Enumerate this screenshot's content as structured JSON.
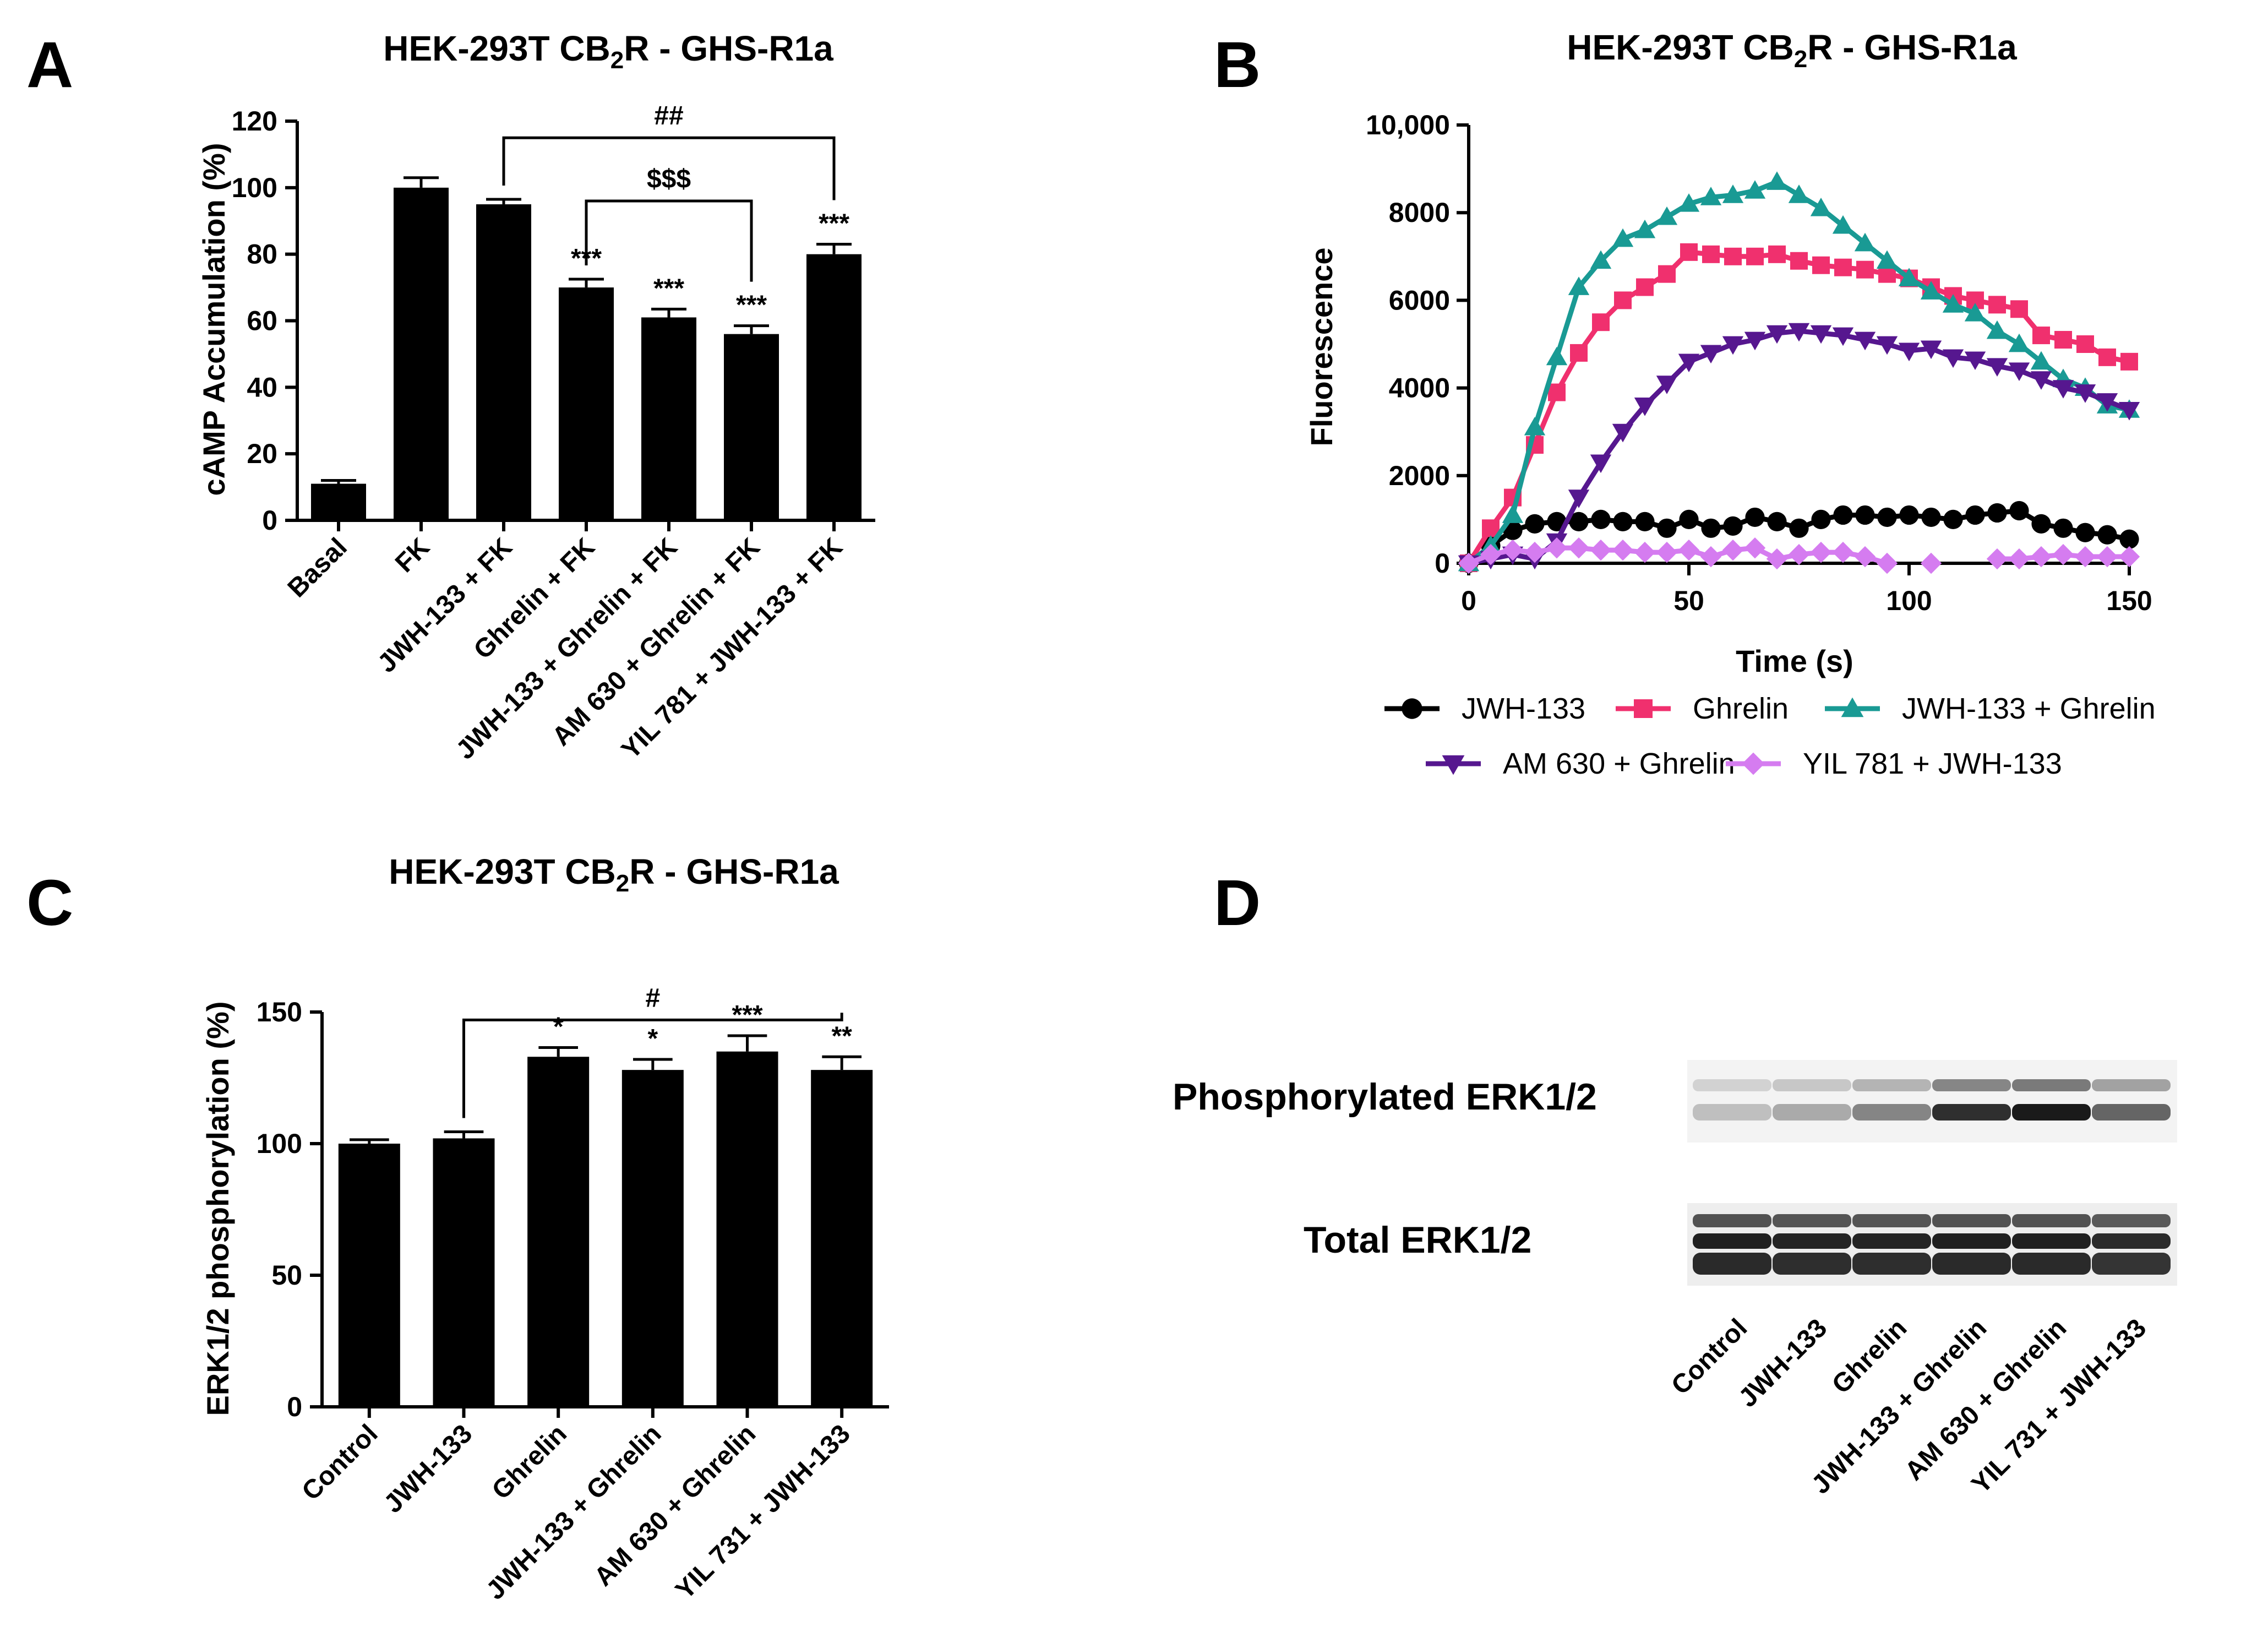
{
  "panels": {
    "A": {
      "letter": "A"
    },
    "B": {
      "letter": "B"
    },
    "C": {
      "letter": "C"
    },
    "D": {
      "letter": "D"
    }
  },
  "chart_data": [
    {
      "id": "A",
      "type": "bar",
      "title_main": "HEK-293T CB",
      "title_sub": "2",
      "title_rest": "R - GHS-R1a",
      "ylabel": "cAMP Accumulation (%)",
      "xlabel": "",
      "ylim": [
        0,
        120
      ],
      "yticks": [
        0,
        20,
        40,
        60,
        80,
        100,
        120
      ],
      "categories": [
        "Basal",
        "FK",
        "JWH-133 + FK",
        "Ghrelin + FK",
        "JWH-133 + Ghrelin + FK",
        "AM 630 + Ghrelin + FK",
        "YIL 781 + JWH-133 + FK"
      ],
      "values": [
        11,
        100,
        95,
        70,
        61,
        56,
        80
      ],
      "errors": [
        1,
        3,
        1.5,
        2.5,
        2.5,
        2.5,
        3
      ],
      "significance": [
        "",
        "",
        "",
        "***",
        "***",
        "***",
        "***"
      ],
      "brackets": [
        {
          "from": 2,
          "to": 6,
          "label": "##",
          "level": 115
        },
        {
          "from": 3,
          "to": 5,
          "label": "$$$",
          "level": 96
        }
      ]
    },
    {
      "id": "B",
      "type": "line",
      "title_main": "HEK-293T CB",
      "title_sub": "2",
      "title_rest": "R - GHS-R1a",
      "xlabel": "Time (s)",
      "ylabel": "Fluorescence",
      "xlim": [
        0,
        150
      ],
      "ylim": [
        0,
        10000
      ],
      "xticks": [
        0,
        50,
        100,
        150
      ],
      "yticks": [
        0,
        2000,
        4000,
        6000,
        8000,
        10000
      ],
      "ytick_labels": [
        "0",
        "2000",
        "4000",
        "6000",
        "8000",
        "10,000"
      ],
      "x": [
        0,
        5,
        10,
        15,
        20,
        25,
        30,
        35,
        40,
        45,
        50,
        55,
        60,
        65,
        70,
        75,
        80,
        85,
        90,
        95,
        100,
        105,
        110,
        115,
        120,
        125,
        130,
        135,
        140,
        145,
        150
      ],
      "series": [
        {
          "name": "JWH-133",
          "color": "#000000",
          "marker": "circle",
          "values": [
            0,
            400,
            750,
            900,
            950,
            950,
            1000,
            950,
            950,
            800,
            1000,
            800,
            850,
            1050,
            950,
            800,
            1000,
            1100,
            1100,
            1050,
            1100,
            1050,
            1000,
            1100,
            1150,
            1200,
            900,
            800,
            700,
            650,
            550
          ]
        },
        {
          "name": "Ghrelin",
          "color": "#f0306e",
          "marker": "square",
          "values": [
            0,
            800,
            1500,
            2700,
            3900,
            4800,
            5500,
            6000,
            6300,
            6600,
            7100,
            7050,
            7000,
            7000,
            7050,
            6900,
            6800,
            6750,
            6700,
            6600,
            6500,
            6300,
            6100,
            6000,
            5900,
            5800,
            5200,
            5100,
            5000,
            4700,
            4600
          ]
        },
        {
          "name": "JWH-133 + Ghrelin",
          "color": "#199a94",
          "marker": "triangle-up",
          "values": [
            0,
            400,
            1100,
            3100,
            4700,
            6300,
            6900,
            7400,
            7600,
            7900,
            8200,
            8350,
            8400,
            8500,
            8700,
            8400,
            8100,
            7700,
            7300,
            6900,
            6500,
            6200,
            5900,
            5700,
            5300,
            5000,
            4600,
            4200,
            4000,
            3600,
            3500
          ]
        },
        {
          "name": "AM 630 + Ghrelin",
          "color": "#56178f",
          "marker": "triangle-down",
          "values": [
            0,
            100,
            200,
            100,
            500,
            1500,
            2300,
            3000,
            3600,
            4100,
            4600,
            4800,
            5000,
            5100,
            5250,
            5300,
            5250,
            5200,
            5100,
            5000,
            4850,
            4900,
            4700,
            4650,
            4500,
            4400,
            4200,
            4000,
            3900,
            3700,
            3500
          ]
        },
        {
          "name": "YIL 781 + JWH-133",
          "color": "#d57cf0",
          "marker": "diamond",
          "values": [
            0,
            200,
            300,
            250,
            350,
            350,
            300,
            300,
            250,
            250,
            300,
            150,
            300,
            350,
            100,
            200,
            250,
            250,
            150,
            0,
            null,
            0,
            null,
            null,
            100,
            100,
            150,
            200,
            150,
            150,
            150
          ]
        }
      ]
    },
    {
      "id": "C",
      "type": "bar",
      "title_main": "HEK-293T CB",
      "title_sub": "2",
      "title_rest": "R - GHS-R1a",
      "ylabel": "ERK1/2 phosphorylation (%)",
      "xlabel": "",
      "ylim": [
        0,
        150
      ],
      "yticks": [
        0,
        50,
        100,
        150
      ],
      "categories": [
        "Control",
        "JWH-133",
        "Ghrelin",
        "JWH-133 + Ghrelin",
        "AM 630 + Ghrelin",
        "YIL 731 + JWH-133"
      ],
      "values": [
        100,
        102,
        133,
        128,
        135,
        128
      ],
      "errors": [
        1.5,
        2.5,
        3.5,
        4,
        6,
        5
      ],
      "significance": [
        "",
        "",
        "*",
        "*",
        "***",
        "**"
      ],
      "brackets": [
        {
          "from": 1,
          "to": 5,
          "label": "#",
          "level": 147
        }
      ]
    }
  ],
  "blot": {
    "row_labels": [
      "Phosphorylated ERK1/2",
      "Total ERK1/2"
    ],
    "lanes": [
      "Control",
      "JWH-133",
      "Ghrelin",
      "JWH-133 + Ghrelin",
      "AM 630 + Ghrelin",
      "YIL 731 + JWH-133"
    ],
    "phospho_intensity": [
      0.18,
      0.28,
      0.45,
      0.85,
      0.95,
      0.6
    ],
    "total_intensity": [
      0.9,
      0.88,
      0.88,
      0.9,
      0.9,
      0.85
    ]
  }
}
